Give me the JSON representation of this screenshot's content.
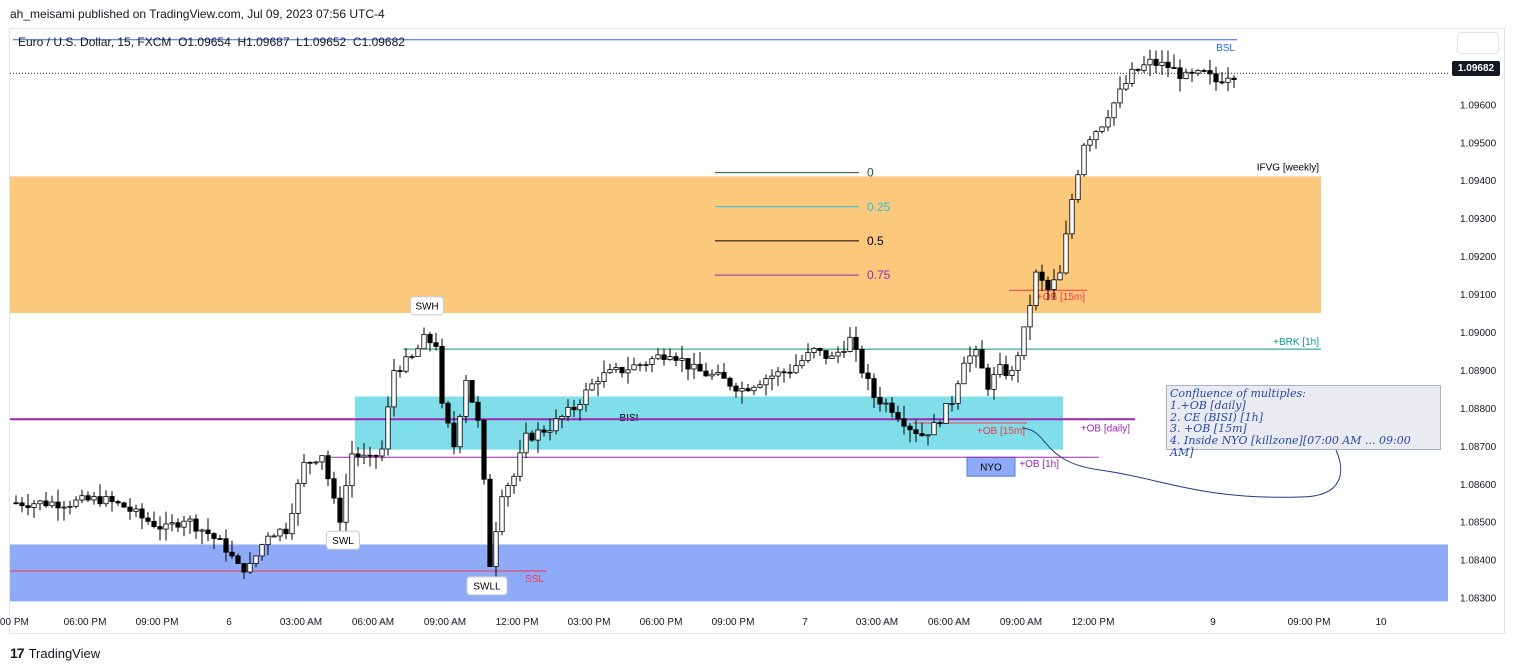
{
  "publisher": "ah_meisami published on TradingView.com, Jul 09, 2023 07:56 UTC-4",
  "symbol": {
    "name": "Euro / U.S. Dollar, 15, FXCM",
    "open": "O1.09654",
    "high": "H1.09687",
    "low": "L1.09652",
    "close": "C1.09682"
  },
  "footer": {
    "brand": "TradingView"
  },
  "colors": {
    "bullish": "#ffffff",
    "bearish": "#000000",
    "weekly_fvg": "#fcc87c",
    "bisi_zone": "#80deea",
    "ssl_zone": "#8fabf8",
    "purple_line": "#9c27b0",
    "green_line": "#089981",
    "red_line": "#f23645"
  },
  "chart_data": {
    "type": "candlestick",
    "title": "",
    "symbol": "EURUSD",
    "timeframe": "15",
    "ylim": [
      1.0827,
      1.0978
    ],
    "last_price": 1.09682,
    "last_price_label": "1.09682",
    "y_ticks": [
      {
        "value": 1.096,
        "label": "1.09600"
      },
      {
        "value": 1.095,
        "label": "1.09500"
      },
      {
        "value": 1.094,
        "label": "1.09400"
      },
      {
        "value": 1.093,
        "label": "1.09300"
      },
      {
        "value": 1.092,
        "label": "1.09200"
      },
      {
        "value": 1.091,
        "label": "1.09100"
      },
      {
        "value": 1.09,
        "label": "1.09000"
      },
      {
        "value": 1.089,
        "label": "1.08900"
      },
      {
        "value": 1.088,
        "label": "1.08800"
      },
      {
        "value": 1.087,
        "label": "1.08700"
      },
      {
        "value": 1.086,
        "label": "1.08600"
      },
      {
        "value": 1.085,
        "label": "1.08500"
      },
      {
        "value": 1.084,
        "label": "1.08400"
      },
      {
        "value": 1.083,
        "label": "1.08300"
      }
    ],
    "x_ticks": [
      {
        "bar": 0,
        "label": ":00 PM"
      },
      {
        "bar": 12,
        "label": "06:00 PM"
      },
      {
        "bar": 24,
        "label": "09:00 PM"
      },
      {
        "bar": 36,
        "label": "6"
      },
      {
        "bar": 48,
        "label": "03:00 AM"
      },
      {
        "bar": 60,
        "label": "06:00 AM"
      },
      {
        "bar": 72,
        "label": "09:00 AM"
      },
      {
        "bar": 84,
        "label": "12:00 PM"
      },
      {
        "bar": 96,
        "label": "03:00 PM"
      },
      {
        "bar": 108,
        "label": "06:00 PM"
      },
      {
        "bar": 120,
        "label": "09:00 PM"
      },
      {
        "bar": 132,
        "label": "7"
      },
      {
        "bar": 144,
        "label": "03:00 AM"
      },
      {
        "bar": 156,
        "label": "06:00 AM"
      },
      {
        "bar": 168,
        "label": "09:00 AM"
      },
      {
        "bar": 180,
        "label": "12:00 PM"
      },
      {
        "bar": 200,
        "label": "9"
      },
      {
        "bar": 216,
        "label": "09:00 PM"
      },
      {
        "bar": 228,
        "label": "10"
      }
    ],
    "zones": [
      {
        "name": "weekly-fvg",
        "label": "IFVG [weekly]",
        "from_bar": -2,
        "to_bar": 218,
        "top": 1.0941,
        "bottom": 1.0905,
        "color": "#fcc87c"
      },
      {
        "name": "bisi",
        "label": "BISI",
        "from_bar": 57,
        "to_bar": 175,
        "top": 1.0883,
        "bottom": 1.0869,
        "color": "#80deea"
      },
      {
        "name": "ssl-zone",
        "label": "",
        "from_bar": -2,
        "to_bar": 240,
        "top": 1.0844,
        "bottom": 1.0829,
        "color": "#8fabf8"
      },
      {
        "name": "nyo",
        "label": "NYO",
        "from_bar": 159,
        "to_bar": 167,
        "top": 1.0867,
        "bottom": 1.0862,
        "color": "#8fabf8"
      }
    ],
    "levels": [
      {
        "name": "bsl",
        "label": "BSL",
        "price": 1.0977,
        "from_bar": 0,
        "to_bar": 204,
        "color": "#2962ff"
      },
      {
        "name": "brk-1h",
        "label": "+BRK [1h]",
        "price": 1.08955,
        "from_bar": 65,
        "to_bar": 218,
        "color": "#089981"
      },
      {
        "name": "ob-daily",
        "label": "+OB [daily]",
        "price": 1.0877,
        "from_bar": -2,
        "to_bar": 187,
        "color": "#9c27b0"
      },
      {
        "name": "ob-1h",
        "label": "+OB [1h]",
        "price": 1.0867,
        "from_bar": 53,
        "to_bar": 181,
        "color": "#9c27b0"
      },
      {
        "name": "ob-15m-low",
        "label": "+OB [15m]",
        "price": 1.0876,
        "from_bar": 150,
        "to_bar": 169,
        "color": "#f23645"
      },
      {
        "name": "ob-15m-high",
        "label": "+OB [15m]",
        "price": 1.0911,
        "from_bar": 166,
        "to_bar": 179,
        "color": "#f23645"
      },
      {
        "name": "ssl",
        "label": "SSL",
        "price": 1.0837,
        "from_bar": -2,
        "to_bar": 89,
        "color": "#f23645"
      }
    ],
    "fibonacci": [
      {
        "label": "0",
        "price": 1.0942,
        "color": "#1b5e20"
      },
      {
        "label": "0.25",
        "price": 1.0933,
        "color": "#26c6da"
      },
      {
        "label": "0.5",
        "price": 1.0924,
        "color": "#000000"
      },
      {
        "label": "0.75",
        "price": 1.0915,
        "color": "#9c27b0"
      }
    ],
    "fib_range": {
      "from_bar": 117,
      "to_bar": 141
    },
    "annotations": [
      {
        "label": "SWH",
        "bar": 69,
        "price": 1.0904,
        "position": "above"
      },
      {
        "label": "SWL",
        "bar": 55,
        "price": 1.0848,
        "position": "below"
      },
      {
        "label": "SWLL",
        "bar": 79,
        "price": 1.0836,
        "position": "below"
      }
    ],
    "confluence": {
      "title": "Confluence of multiples:",
      "items": [
        "1.+OB [daily]",
        "2. CE (BISI) [1h]",
        "3. +OB [15m]",
        "4. Inside NYO [killzone][07:00 AM ... 09:00 AM]"
      ]
    },
    "bar_anchors": [
      [
        0,
        1.0855
      ],
      [
        5,
        1.0855
      ],
      [
        10,
        1.0855
      ],
      [
        15,
        1.0856
      ],
      [
        19,
        1.0854
      ],
      [
        22,
        1.0851
      ],
      [
        26,
        1.0848
      ],
      [
        29,
        1.0851
      ],
      [
        33,
        1.0847
      ],
      [
        36,
        1.0843
      ],
      [
        38,
        1.0838
      ],
      [
        40,
        1.0838
      ],
      [
        43,
        1.0847
      ],
      [
        46,
        1.0848
      ],
      [
        49,
        1.0865
      ],
      [
        52,
        1.0868
      ],
      [
        54,
        1.0855
      ],
      [
        55,
        1.0851
      ],
      [
        57,
        1.0868
      ],
      [
        60,
        1.0866
      ],
      [
        62,
        1.0869
      ],
      [
        64,
        1.089
      ],
      [
        67,
        1.0893
      ],
      [
        69,
        1.0898
      ],
      [
        71,
        1.0897
      ],
      [
        72,
        1.088
      ],
      [
        74,
        1.087
      ],
      [
        76,
        1.0888
      ],
      [
        78,
        1.0876
      ],
      [
        79,
        1.086
      ],
      [
        80,
        1.0839
      ],
      [
        82,
        1.0858
      ],
      [
        84,
        1.0862
      ],
      [
        86,
        1.0872
      ],
      [
        90,
        1.0875
      ],
      [
        94,
        1.088
      ],
      [
        98,
        1.0888
      ],
      [
        102,
        1.089
      ],
      [
        106,
        1.0892
      ],
      [
        110,
        1.0895
      ],
      [
        114,
        1.089
      ],
      [
        118,
        1.0888
      ],
      [
        122,
        1.0885
      ],
      [
        126,
        1.0888
      ],
      [
        130,
        1.089
      ],
      [
        134,
        1.0895
      ],
      [
        137,
        1.0893
      ],
      [
        140,
        1.0898
      ],
      [
        142,
        1.089
      ],
      [
        144,
        1.0883
      ],
      [
        147,
        1.088
      ],
      [
        150,
        1.0875
      ],
      [
        152,
        1.0873
      ],
      [
        154,
        1.0875
      ],
      [
        157,
        1.0882
      ],
      [
        159,
        1.0893
      ],
      [
        161,
        1.0894
      ],
      [
        163,
        1.0886
      ],
      [
        165,
        1.089
      ],
      [
        167,
        1.0889
      ],
      [
        169,
        1.09
      ],
      [
        171,
        1.0915
      ],
      [
        173,
        1.0911
      ],
      [
        175,
        1.0915
      ],
      [
        177,
        1.0935
      ],
      [
        179,
        1.095
      ],
      [
        182,
        1.0955
      ],
      [
        185,
        1.0963
      ],
      [
        187,
        1.0968
      ],
      [
        190,
        1.0971
      ],
      [
        193,
        1.097
      ],
      [
        196,
        1.0967
      ],
      [
        199,
        1.0968
      ],
      [
        201,
        1.0966
      ],
      [
        203,
        1.0968
      ]
    ]
  }
}
